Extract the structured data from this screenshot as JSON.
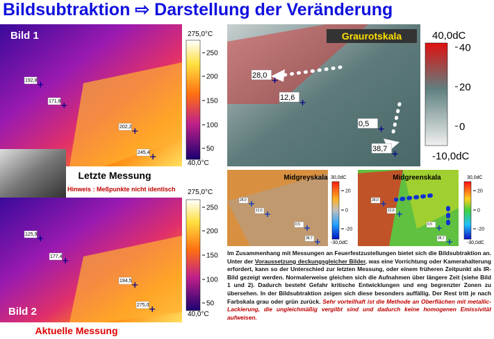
{
  "header": {
    "title": "Bildsubtraktion ⇨ Darstellung der Veränderung"
  },
  "bild1": {
    "label": "Bild 1",
    "points": [
      "192,8",
      "171,8",
      "202,2",
      "245,4"
    ],
    "scale": {
      "top": "275,0°C",
      "ticks": [
        "250",
        "200",
        "150",
        "100",
        "50"
      ],
      "bottom": "40,0°C"
    },
    "caption": "Letzte Messung"
  },
  "note": "Hinweis : Meßpunkte nicht identisch",
  "bild2": {
    "label": "Bild 2",
    "points": [
      "125,9",
      "177,4",
      "194,5",
      "275,0"
    ],
    "scale": {
      "top": "275,0°C",
      "ticks": [
        "250",
        "200",
        "150",
        "100",
        "50"
      ],
      "bottom": "40,0°C"
    },
    "caption": "Aktuelle Messung"
  },
  "graurot": {
    "title": "Graurotskala",
    "points": [
      "28,0",
      "12,6",
      "0,5",
      "38,7"
    ],
    "scale": {
      "top": "40,0dC",
      "ticks": [
        "40",
        "20",
        "0"
      ],
      "bottom": "-10,0dC"
    }
  },
  "midgrey": {
    "title": "Midgreyskala",
    "points": [
      "28,0",
      "12,6",
      "0,5",
      "38,7"
    ],
    "scale": {
      "top": "30,0dC",
      "ticks": [
        "20",
        "0",
        "-20"
      ],
      "bottom": "-30,0dC"
    }
  },
  "midgreen": {
    "title": "Midgreenskala",
    "points": [
      "28,0",
      "12,6",
      "0,5",
      "38,7"
    ],
    "scale": {
      "top": "30,0dC",
      "ticks": [
        "20",
        "0",
        "-20"
      ],
      "bottom": "-30,0dC"
    }
  },
  "paragraph": {
    "parts": [
      "Im Zusammenhang mit Messungen an Feuerfestzustellungen bietet sich die Bildsubtraktion an. Unter der ",
      "Voraussetzung deckungsgleicher Bilder",
      ", was eine Vorrichtung oder Kamerahalterung erfordert, kann so der Unterschied zur letzten Messung, oder einem früheren Zeitpunkt als IR-Bild gezeigt werden. Normalerweise gleichen sich die Aufnahmen über längere Zeit (siehe Bild 1 und 2). Dadurch besteht Gefahr kritische Entwicklungen und eng begrenzter Zonen zu übersehen. In der Bildsubtraktion zeigen sich diese besonders auffällig. Der Rest tritt je nach Farbskala grau oder grün zurück. ",
      "Sehr vorteilhaft ist die Methode an Oberflächen mit metallic-Lackierung, die ungleichmäßig vergilbt sind und dadurch keine homogenen Emissivität aufweisen."
    ]
  }
}
